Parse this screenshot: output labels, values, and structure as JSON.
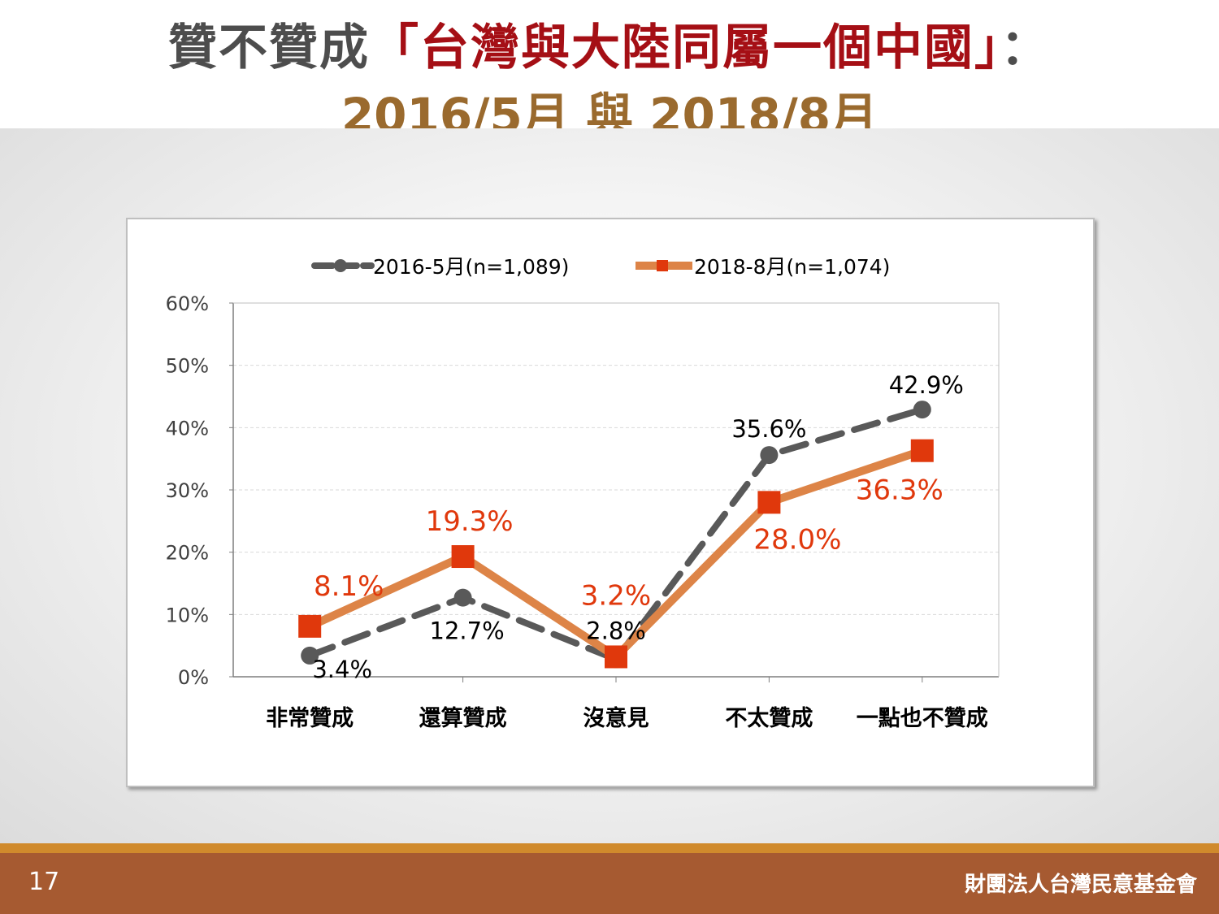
{
  "slide": {
    "title_prefix": "贊不贊成",
    "title_quote": "「台灣與大陸同屬一個中國」",
    "title_suffix": "：",
    "subtitle": "2016/5月 與 2018/8月",
    "page_number": "17",
    "organization": "財團法人台灣民意基金會"
  },
  "colors": {
    "series_2016": "#595959",
    "series_2018": "#dd8447",
    "marker_2018": "#e0380c",
    "label_2018": "#e0380c",
    "title_quote": "#a50f15",
    "subtitle": "#9a6a2e",
    "footer": "#a65a31",
    "footer_stripe": "#d08a2c"
  },
  "chart_data": {
    "type": "line",
    "categories": [
      "非常贊成",
      "還算贊成",
      "沒意見",
      "不太贊成",
      "一點也不贊成"
    ],
    "ylim": [
      0,
      60
    ],
    "yticks": [
      "0%",
      "10%",
      "20%",
      "30%",
      "40%",
      "50%",
      "60%"
    ],
    "grid": true,
    "legend_position": "top",
    "series": [
      {
        "name": "2016-5月(n=1,089)",
        "values": [
          3.4,
          12.7,
          2.8,
          35.6,
          42.9
        ],
        "labels": [
          "3.4%",
          "12.7%",
          "2.8%",
          "35.6%",
          "42.9%"
        ],
        "style": "dashed",
        "marker": "circle"
      },
      {
        "name": "2018-8月(n=1,074)",
        "values": [
          8.1,
          19.3,
          3.2,
          28.0,
          36.3
        ],
        "labels": [
          "8.1%",
          "19.3%",
          "3.2%",
          "28.0%",
          "36.3%"
        ],
        "style": "solid",
        "marker": "square"
      }
    ]
  }
}
